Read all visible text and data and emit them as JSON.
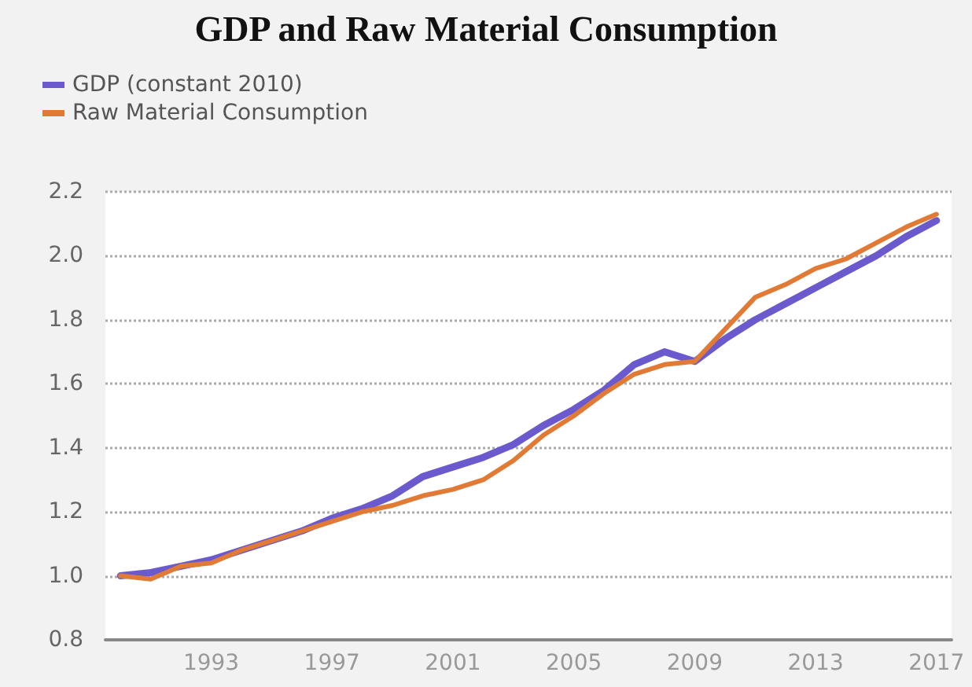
{
  "chart_data": {
    "type": "line",
    "title": "GDP and Raw Material Consumption",
    "categories": [
      null,
      null,
      null,
      "1993",
      null,
      null,
      null,
      "1997",
      null,
      null,
      null,
      "2001",
      null,
      null,
      null,
      "2005",
      null,
      null,
      null,
      "2009",
      null,
      null,
      null,
      "2013",
      null,
      null,
      null,
      "2017"
    ],
    "series": [
      {
        "name": "GDP (constant 2010)",
        "color": "#6a5acd",
        "values": [
          1.0,
          1.01,
          1.03,
          1.05,
          1.08,
          1.11,
          1.14,
          1.18,
          1.21,
          1.25,
          1.31,
          1.34,
          1.37,
          1.41,
          1.47,
          1.52,
          1.58,
          1.66,
          1.7,
          1.67,
          1.74,
          1.8,
          1.85,
          1.9,
          1.95,
          2.0,
          2.06,
          2.11
        ]
      },
      {
        "name": "Raw Material Consumption",
        "color": "#e07a35",
        "values": [
          1.0,
          0.99,
          1.03,
          1.04,
          1.08,
          1.11,
          1.14,
          1.17,
          1.2,
          1.22,
          1.25,
          1.27,
          1.3,
          1.36,
          1.44,
          1.5,
          1.57,
          1.63,
          1.66,
          1.67,
          1.77,
          1.87,
          1.91,
          1.96,
          1.99,
          2.04,
          2.09,
          2.13
        ]
      }
    ],
    "ylim": [
      0.8,
      2.2
    ],
    "yticks": [
      0.8,
      {
        "value": 1,
        "label": "1.0"
      },
      1.2,
      1.4,
      1.6,
      1.8,
      {
        "value": 2,
        "label": "2.0"
      },
      2.2
    ],
    "grid": "y",
    "legend": "top left",
    "marker": "none",
    "line_style": "solid"
  }
}
